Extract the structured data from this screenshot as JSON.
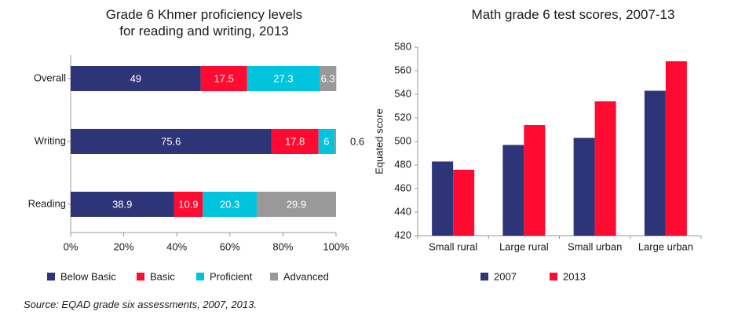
{
  "colors": {
    "below_basic": "#2e3478",
    "basic": "#ff0a30",
    "proficient": "#00c4de",
    "advanced": "#999999",
    "y2007": "#2e3478",
    "y2013": "#ff0a30"
  },
  "source_note": "Source: EQAD grade six assessments, 2007, 2013.",
  "chart_data": [
    {
      "type": "bar",
      "orientation": "horizontal",
      "stacked": true,
      "title": "Grade 6 Khmer proficiency levels for reading and writing, 2013",
      "title_lines": [
        "Grade 6 Khmer proficiency levels",
        "for reading and writing, 2013"
      ],
      "categories": [
        "Overall",
        "Writing",
        "Reading"
      ],
      "series": [
        {
          "name": "Below Basic",
          "values": [
            49,
            75.6,
            38.9
          ]
        },
        {
          "name": "Basic",
          "values": [
            17.5,
            17.8,
            10.9
          ]
        },
        {
          "name": "Proficient",
          "values": [
            27.3,
            6,
            20.3
          ]
        },
        {
          "name": "Advanced",
          "values": [
            6.3,
            0.6,
            29.9
          ]
        }
      ],
      "xlim": [
        0,
        100
      ],
      "xticks": [
        "0%",
        "20%",
        "40%",
        "60%",
        "80%",
        "100%"
      ],
      "legend_position": "bottom"
    },
    {
      "type": "bar",
      "title": "Math grade 6 test scores, 2007-13",
      "categories": [
        "Small rural",
        "Large rural",
        "Small urban",
        "Large urban"
      ],
      "series": [
        {
          "name": "2007",
          "values": [
            483,
            497,
            503,
            543
          ]
        },
        {
          "name": "2013",
          "values": [
            476,
            514,
            534,
            568
          ]
        }
      ],
      "ylabel": "Equated score",
      "ylim": [
        420,
        580
      ],
      "yticks": [
        "420",
        "440",
        "460",
        "480",
        "500",
        "520",
        "540",
        "560",
        "580"
      ],
      "grid": false,
      "legend_position": "bottom"
    }
  ]
}
